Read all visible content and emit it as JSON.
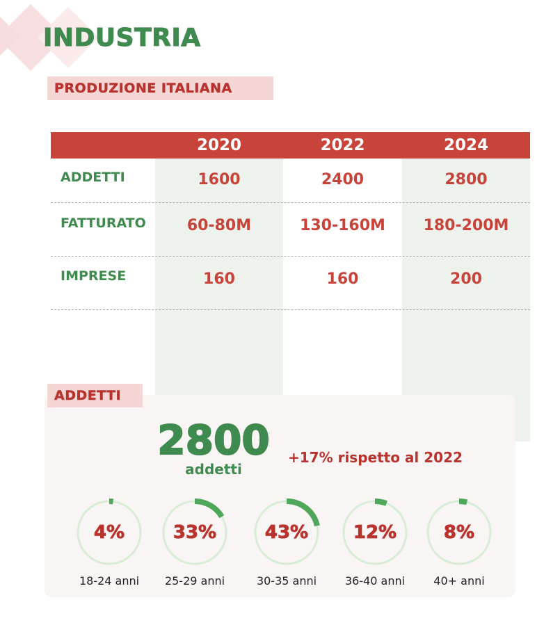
{
  "colors": {
    "green": "#3f8a4f",
    "red": "#c8433a",
    "dark_red": "#b8332e",
    "pink": "#f4d6d4",
    "ring_track": "#d9ecd6",
    "ring_fill": "#4fa75b"
  },
  "header": {
    "title": "INDUSTRIA"
  },
  "production": {
    "label": "PRODUZIONE ITALIANA",
    "columns": [
      "2020",
      "2022",
      "2024"
    ],
    "rows": [
      {
        "label": "ADDETTI",
        "values": [
          "1600",
          "2400",
          "2800"
        ]
      },
      {
        "label": "FATTURATO",
        "values": [
          "60-80M",
          "130-160M",
          "180-200M"
        ]
      },
      {
        "label": "IMPRESE",
        "values": [
          "160",
          "160",
          "200"
        ]
      }
    ]
  },
  "addetti": {
    "label": "ADDETTI",
    "total": "2800",
    "total_unit": "addetti",
    "change": "+17% rispetto al 2022",
    "age_groups": [
      {
        "percent_label": "4%",
        "percent": 4,
        "range": "18-24 anni"
      },
      {
        "percent_label": "33%",
        "percent": 33,
        "range": "25-29 anni"
      },
      {
        "percent_label": "43%",
        "percent": 43,
        "range": "30-35 anni"
      },
      {
        "percent_label": "12%",
        "percent": 12,
        "range": "36-40 anni"
      },
      {
        "percent_label": "8%",
        "percent": 8,
        "range": "40+ anni"
      }
    ]
  }
}
